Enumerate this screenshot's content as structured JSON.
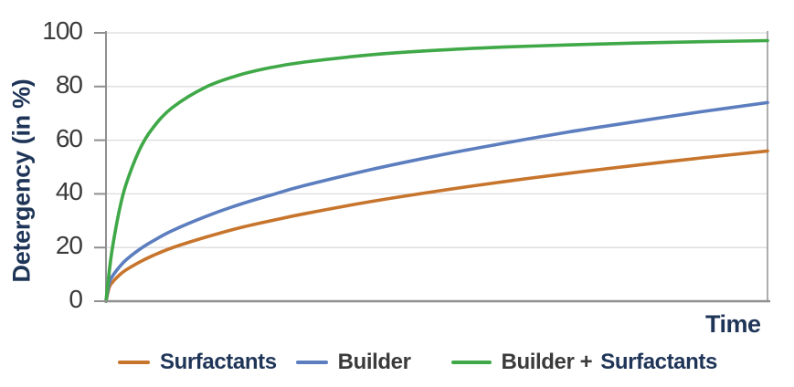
{
  "chart_data": {
    "type": "line",
    "title": "",
    "xlabel": "Time",
    "ylabel": "Detergency (in %)",
    "ylim": [
      0,
      100
    ],
    "yticks": [
      0,
      20,
      40,
      60,
      80,
      100
    ],
    "x_tick_labels": [],
    "grid": "horizontal-only",
    "legend_position": "bottom",
    "x": [
      0,
      0.005,
      0.01,
      0.02,
      0.03,
      0.05,
      0.07,
      0.1,
      0.15,
      0.2,
      0.25,
      0.3,
      0.4,
      0.5,
      0.6,
      0.7,
      0.8,
      0.9,
      1.0
    ],
    "series": [
      {
        "name": "Surfactants",
        "color": "#C7752D",
        "values": [
          0,
          5.2,
          7.1,
          9.7,
          11.6,
          14.5,
          16.9,
          19.9,
          23.8,
          27.2,
          30.0,
          32.6,
          37.1,
          41.0,
          44.5,
          47.7,
          50.6,
          53.4,
          56.0
        ]
      },
      {
        "name": "Builder",
        "color": "#5C7EBF",
        "values": [
          0,
          6.9,
          9.4,
          12.7,
          15.3,
          19.2,
          22.3,
          26.3,
          31.5,
          35.9,
          39.6,
          43.1,
          49.0,
          54.2,
          58.8,
          63.1,
          66.9,
          70.6,
          74.0
        ]
      },
      {
        "name": "Builder + Surfactants",
        "color": "#3FA847",
        "values": [
          0,
          11.2,
          20.2,
          33.7,
          43.3,
          56.1,
          64.3,
          72.1,
          79.7,
          84.2,
          87.1,
          89.1,
          91.8,
          93.5,
          94.7,
          95.5,
          96.2,
          96.7,
          97.1
        ]
      }
    ]
  },
  "legend": {
    "entries": [
      {
        "swatch_color": "#C7752D",
        "parts": [
          {
            "text": "Surfactants",
            "color": "#1F3558"
          }
        ]
      },
      {
        "swatch_color": "#5C7EBF",
        "parts": [
          {
            "text": "Builder",
            "color": "#3B3B3B"
          }
        ]
      },
      {
        "swatch_color": "#3FA847",
        "parts": [
          {
            "text": "Builder +",
            "color": "#3B3B3B"
          },
          {
            "text": "Surfactants",
            "color": "#1F3558"
          }
        ]
      }
    ]
  },
  "axes": {
    "y_axis_title": "Detergency (in %)",
    "x_axis_title": "Time",
    "y_tick_labels": [
      "0",
      "20",
      "40",
      "60",
      "80",
      "100"
    ]
  },
  "colors": {
    "axis_title_text": "#1F3558",
    "tick_label_text": "#3B3B3B",
    "gridline": "#DCDCDC",
    "axis_line": "#8F8F8F",
    "plot_right_border": "#ADADAD",
    "background": "#FFFFFF"
  }
}
